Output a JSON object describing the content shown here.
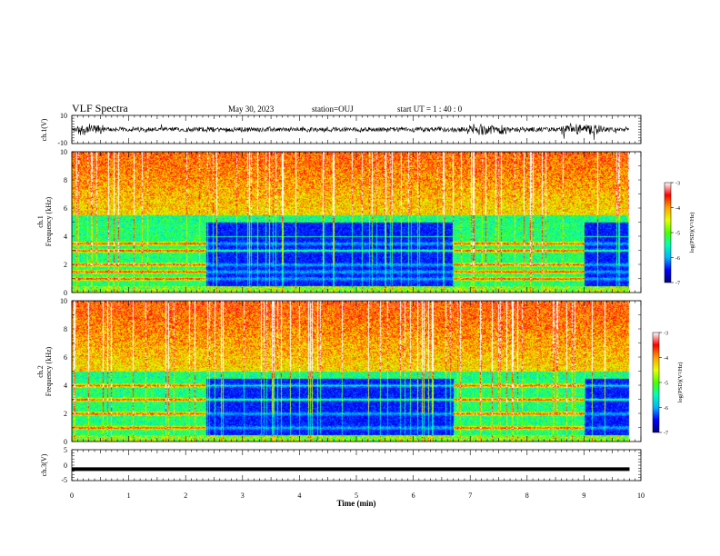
{
  "header": {
    "title": "VLF Spectra",
    "date": "May 30, 2023",
    "station": "station=OUJ",
    "start_time": "start  UT =  1 : 40 : 0"
  },
  "colors": {
    "colormap": [
      "#00007a",
      "#0000ff",
      "#00b4ff",
      "#00ffb4",
      "#4cff00",
      "#e6ff00",
      "#ffa000",
      "#ff0000",
      "#ffffff"
    ]
  },
  "chart_data": [
    {
      "type": "line",
      "panel": "waveform-ch1",
      "ylabel": "ch.1(V)",
      "ylim": [
        -10,
        10
      ],
      "y_ticks": [
        "10",
        "-10"
      ],
      "xlim": [
        0,
        10
      ],
      "note_series": "broadband waveform, amplitude about ±2 V, bursts near 0.2-0.5, 7.0-7.6 and 8.7-9.2 min",
      "x_end": 9.8
    },
    {
      "type": "heatmap",
      "panel": "spectrogram-ch1",
      "ylabel": "ch.1\nFrequency (kHz)",
      "ylim": [
        0,
        10
      ],
      "y_ticks": [
        "0",
        "2",
        "4",
        "6",
        "8",
        "10"
      ],
      "xlim": [
        0,
        10
      ],
      "colorbar": {
        "label": "log(PSD)(V²/Hz)",
        "range": [
          -7,
          -3
        ],
        "ticks": [
          "-3",
          "-4",
          "-5",
          "-6",
          "-7"
        ]
      },
      "features": {
        "high_noise_above_khz": 5.5,
        "quiet_band_khz": [
          0.5,
          5.0
        ],
        "strong_bands_khz": [
          1.0,
          1.5,
          2.0,
          3.0,
          3.5
        ],
        "active_intervals_min": [
          [
            0,
            2.35
          ],
          [
            6.7,
            9.0
          ]
        ],
        "data_end_min": 9.8
      }
    },
    {
      "type": "heatmap",
      "panel": "spectrogram-ch2",
      "ylabel": "ch.2\nFrequency (kHz)",
      "ylim": [
        0,
        10
      ],
      "y_ticks": [
        "0",
        "2",
        "4",
        "6",
        "8",
        "10"
      ],
      "xlim": [
        0,
        10
      ],
      "colorbar": {
        "label": "log(PSD)(V²/Hz)",
        "range": [
          -7,
          -3
        ],
        "ticks": [
          "-3",
          "-4",
          "-5",
          "-6",
          "-7"
        ]
      },
      "features": {
        "high_noise_above_khz": 5.0,
        "quiet_band_khz": [
          0.5,
          4.5
        ],
        "strong_bands_khz": [
          1.0,
          2.0,
          3.0,
          4.0
        ],
        "active_intervals_min": [
          [
            0,
            2.35
          ],
          [
            6.7,
            9.0
          ]
        ],
        "data_end_min": 9.8
      }
    },
    {
      "type": "line",
      "panel": "waveform-ch3",
      "ylabel": "ch.3(V)",
      "ylim": [
        -5,
        5
      ],
      "y_ticks": [
        "5",
        "0",
        "-5"
      ],
      "xlim": [
        0,
        10
      ],
      "series": [
        {
          "x": [
            0,
            9.8
          ],
          "y": [
            -1.3,
            -1.3
          ]
        }
      ]
    }
  ],
  "x_axis": {
    "label": "Time (min)",
    "ticks": [
      "0",
      "1",
      "2",
      "3",
      "4",
      "5",
      "6",
      "7",
      "8",
      "9",
      "10"
    ]
  }
}
